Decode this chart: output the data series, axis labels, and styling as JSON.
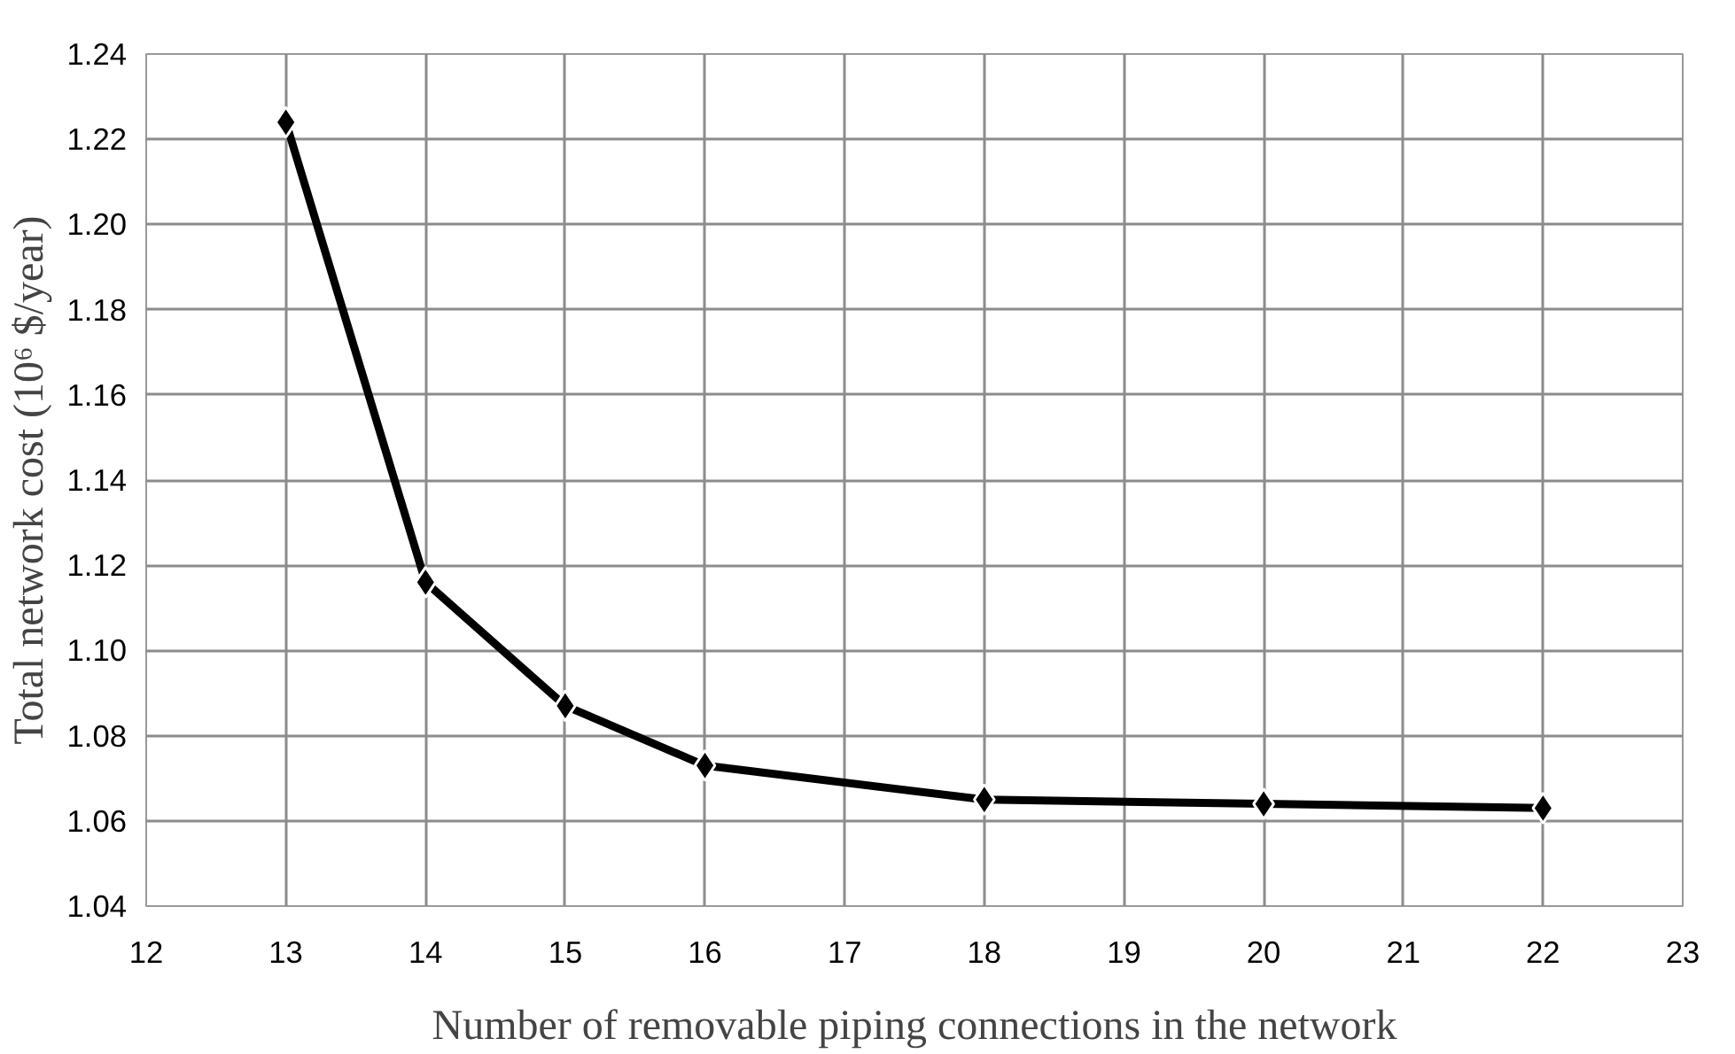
{
  "chart_data": {
    "type": "line",
    "xlabel": "Number of removable piping connections in the network",
    "ylabel": "Total network cost (10⁶ $/year)",
    "series": [
      {
        "color": "#000000",
        "x": [
          13,
          14,
          15,
          16,
          18,
          20,
          22
        ],
        "values": [
          1.224,
          1.116,
          1.087,
          1.073,
          1.065,
          1.064,
          1.063
        ]
      }
    ],
    "xlim": [
      12,
      23
    ],
    "xticks": [
      12,
      13,
      14,
      15,
      16,
      17,
      18,
      19,
      20,
      21,
      22,
      23
    ],
    "ylim": [
      1.04,
      1.24
    ],
    "yticks": [
      1.04,
      1.06,
      1.08,
      {
        "value": 1.1,
        "label": "1.10"
      },
      1.12,
      1.14,
      1.16,
      1.18,
      {
        "value": 1.2,
        "label": "1.20"
      },
      1.22,
      1.24
    ],
    "grid": true,
    "marker": "diamond",
    "line_style": "solid"
  }
}
